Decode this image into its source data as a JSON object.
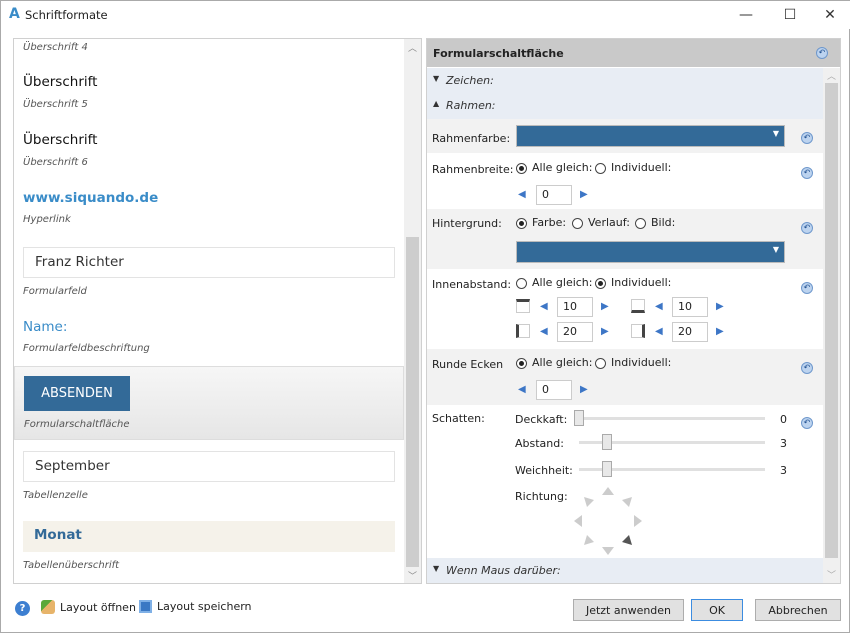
{
  "window": {
    "title": "Schriftformate",
    "logo": "A",
    "minimize": "—",
    "maximize": "☐",
    "close": "✕"
  },
  "left": {
    "items": [
      {
        "label": "Überschrift 4"
      },
      {
        "preview": "Überschrift",
        "label": "Überschrift 5"
      },
      {
        "preview": "Überschrift",
        "label": "Überschrift 6"
      },
      {
        "preview": "www.siquando.de",
        "label": "Hyperlink"
      },
      {
        "preview": "Franz Richter",
        "label": "Formularfeld"
      },
      {
        "preview": "Name:",
        "label": "Formularfeldbeschriftung"
      },
      {
        "preview": "ABSENDEN",
        "label": "Formularschaltfläche"
      },
      {
        "preview": "September",
        "label": "Tabellenzelle"
      },
      {
        "preview": "Monat",
        "label": "Tabellenüberschrift"
      }
    ]
  },
  "right": {
    "header": "Formularschaltfläche",
    "sections": {
      "zeichen": "Zeichen:",
      "rahmen": "Rahmen:",
      "hover": "Wenn Maus darüber:"
    },
    "rahmenfarbe": {
      "label": "Rahmenfarbe:",
      "color": "#336a98"
    },
    "rahmenbreite": {
      "label": "Rahmenbreite:",
      "opt1": "Alle gleich:",
      "opt2": "Individuell:",
      "selected": "Alle gleich:",
      "value": "0"
    },
    "hintergrund": {
      "label": "Hintergrund:",
      "opt1": "Farbe:",
      "opt2": "Verlauf:",
      "opt3": "Bild:",
      "selected": "Farbe:",
      "color": "#336a98"
    },
    "innenabstand": {
      "label": "Innenabstand:",
      "opt1": "Alle gleich:",
      "opt2": "Individuell:",
      "selected": "Individuell:",
      "top": "10",
      "bottom": "10",
      "left": "20",
      "right": "20"
    },
    "runde_ecken": {
      "label": "Runde Ecken",
      "opt1": "Alle gleich:",
      "opt2": "Individuell:",
      "selected": "Alle gleich:",
      "value": "0"
    },
    "schatten": {
      "label": "Schatten:",
      "deckkraft": "Deckkaft:",
      "deckkraft_value": "0",
      "abstand": "Abstand:",
      "abstand_value": "3",
      "weichheit": "Weichheit:",
      "weichheit_value": "3",
      "richtung": "Richtung:",
      "richtung_selected": "bottom-right",
      "slider_max": 20
    }
  },
  "footer": {
    "open": "Layout öffnen",
    "save": "Layout speichern",
    "apply": "Jetzt anwenden",
    "ok": "OK",
    "cancel": "Abbrechen"
  },
  "colors": {
    "accent": "#336a98",
    "link": "#3a8cc8",
    "table_header_bg": "#f5f2ea"
  }
}
